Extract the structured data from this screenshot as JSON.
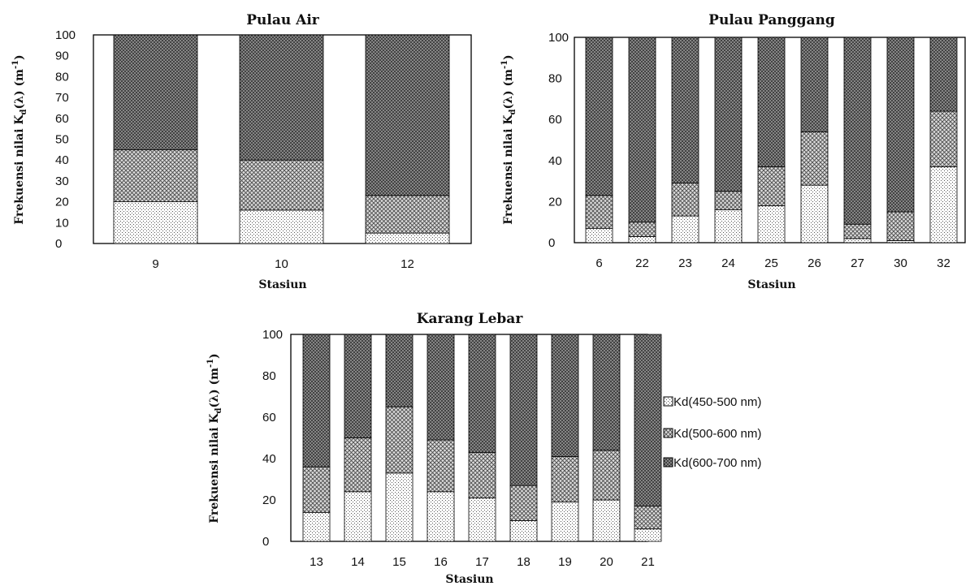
{
  "legend": {
    "items": [
      "Kd(450-500 nm)",
      "Kd(500-600 nm)",
      "Kd(600-700 nm)"
    ],
    "placement": "right"
  },
  "chart_data": [
    {
      "type": "bar",
      "stacked": true,
      "title": "Pulau Air",
      "xlabel": "Stasiun",
      "ylabel_main": "Frekuensi nilai K",
      "ylabel_sub": "d",
      "ylabel_mid": "(λ) (m",
      "ylabel_sup": "-1",
      "ylabel_end": ")",
      "ylim": [
        0,
        100
      ],
      "yticks": [
        0,
        10,
        20,
        30,
        40,
        50,
        60,
        70,
        80,
        90,
        100
      ],
      "categories": [
        "9",
        "10",
        "12"
      ],
      "series": [
        {
          "name": "Kd(450-500 nm)",
          "values": [
            20,
            16,
            5
          ]
        },
        {
          "name": "Kd(500-600 nm)",
          "values": [
            25,
            24,
            18
          ]
        },
        {
          "name": "Kd(600-700 nm)",
          "values": [
            55,
            60,
            77
          ]
        }
      ]
    },
    {
      "type": "bar",
      "stacked": true,
      "title": "Pulau Panggang",
      "xlabel": "Stasiun",
      "ylabel_main": "Frekuensi nilai K",
      "ylabel_sub": "d",
      "ylabel_mid": "(λ) (m",
      "ylabel_sup": "-1",
      "ylabel_end": ")",
      "ylim": [
        0,
        100
      ],
      "yticks": [
        0,
        20,
        40,
        60,
        80,
        100
      ],
      "categories": [
        "6",
        "22",
        "23",
        "24",
        "25",
        "26",
        "27",
        "30",
        "32"
      ],
      "series": [
        {
          "name": "Kd(450-500 nm)",
          "values": [
            7,
            3,
            13,
            16,
            18,
            28,
            2,
            1,
            37
          ]
        },
        {
          "name": "Kd(500-600 nm)",
          "values": [
            16,
            7,
            16,
            9,
            19,
            26,
            7,
            14,
            27
          ]
        },
        {
          "name": "Kd(600-700 nm)",
          "values": [
            77,
            90,
            71,
            75,
            63,
            46,
            91,
            85,
            36
          ]
        }
      ]
    },
    {
      "type": "bar",
      "stacked": true,
      "title": "Karang Lebar",
      "xlabel": "Stasiun",
      "ylabel_main": "Frekuensi nilai K",
      "ylabel_sub": "d",
      "ylabel_mid": "(λ) (m",
      "ylabel_sup": "-1",
      "ylabel_end": ")",
      "ylim": [
        0,
        100
      ],
      "yticks": [
        0,
        20,
        40,
        60,
        80,
        100
      ],
      "categories": [
        "13",
        "14",
        "15",
        "16",
        "17",
        "18",
        "19",
        "20",
        "21"
      ],
      "series": [
        {
          "name": "Kd(450-500 nm)",
          "values": [
            14,
            24,
            33,
            24,
            21,
            10,
            19,
            20,
            6
          ]
        },
        {
          "name": "Kd(500-600 nm)",
          "values": [
            22,
            26,
            32,
            25,
            22,
            17,
            22,
            24,
            11
          ]
        },
        {
          "name": "Kd(600-700 nm)",
          "values": [
            64,
            50,
            35,
            51,
            57,
            73,
            59,
            56,
            83
          ]
        }
      ]
    }
  ]
}
